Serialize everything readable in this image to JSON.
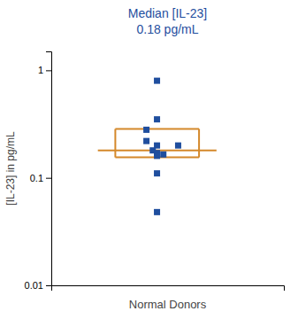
{
  "chart_data": {
    "type": "scatter",
    "title": "Median [IL-23]",
    "subtitle": "0.18 pg/mL",
    "x_label": "Normal Donors",
    "y_label": "[IL-23] in pg/mL",
    "log": "y",
    "grid": false,
    "tick_labels": "y",
    "xlim": [
      0.5,
      1.6
    ],
    "ylim": [
      0.01,
      1.5
    ],
    "yticks": [
      0.01,
      0.1,
      1
    ],
    "series": [
      {
        "type": "scatter",
        "color": "#1f4e9e",
        "marker": "square",
        "x": [
          1.0,
          1.0,
          0.95,
          0.95,
          1.0,
          0.98,
          1.0,
          1.03,
          1.0,
          1.1,
          1.0,
          1.0
        ],
        "values": [
          0.8,
          0.35,
          0.28,
          0.22,
          0.2,
          0.18,
          0.17,
          0.165,
          0.16,
          0.2,
          0.11,
          0.048
        ]
      },
      {
        "type": "box",
        "color": "#d4882a",
        "median": 0.18,
        "q1": 0.155,
        "q3": 0.285
      }
    ]
  }
}
